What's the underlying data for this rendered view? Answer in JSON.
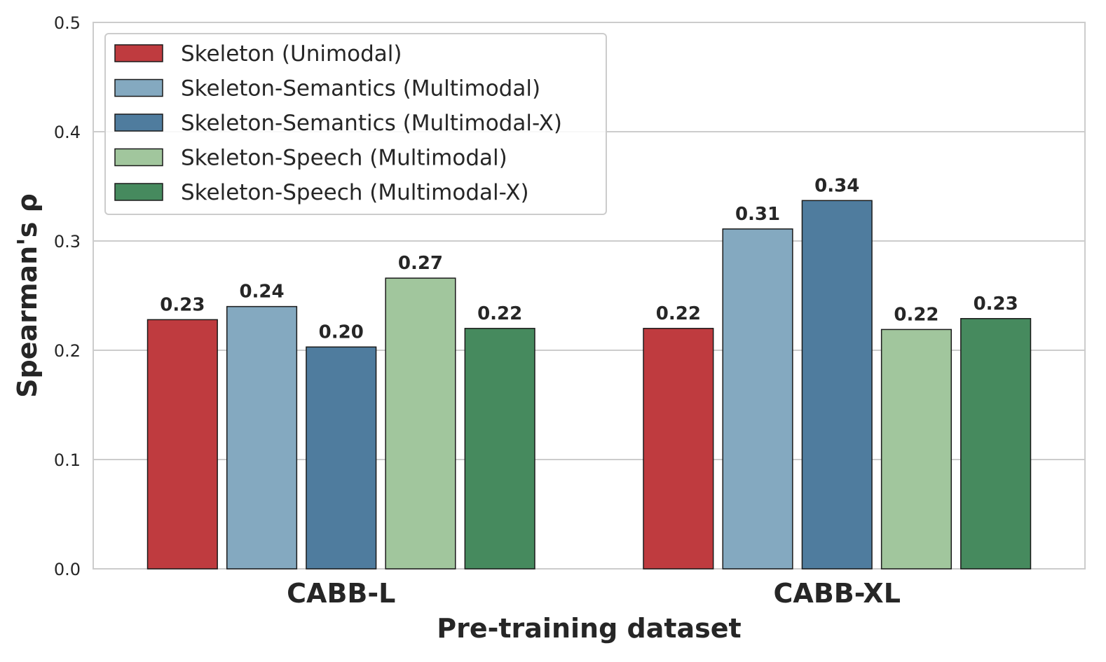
{
  "chart_data": {
    "type": "bar",
    "title": "",
    "xlabel": "Pre-training dataset",
    "ylabel": "Spearman's ρ",
    "categories": [
      "CABB-L",
      "CABB-XL"
    ],
    "ylim": [
      0,
      0.5
    ],
    "yticks": [
      "0.0",
      "0.1",
      "0.2",
      "0.3",
      "0.4",
      "0.5"
    ],
    "grid": true,
    "legend_position": "top-left",
    "series": [
      {
        "name": "Skeleton (Unimodal)",
        "color": "#BF3B3F",
        "values": [
          0.228,
          0.22
        ],
        "labels": [
          "0.23",
          "0.22"
        ]
      },
      {
        "name": "Skeleton-Semantics (Multimodal)",
        "color": "#84A9C0",
        "values": [
          0.24,
          0.311
        ],
        "labels": [
          "0.24",
          "0.31"
        ]
      },
      {
        "name": "Skeleton-Semantics (Multimodal-X)",
        "color": "#4F7C9E",
        "values": [
          0.203,
          0.337
        ],
        "labels": [
          "0.20",
          "0.34"
        ]
      },
      {
        "name": "Skeleton-Speech (Multimodal)",
        "color": "#A1C69D",
        "values": [
          0.266,
          0.219
        ],
        "labels": [
          "0.27",
          "0.22"
        ]
      },
      {
        "name": "Skeleton-Speech (Multimodal-X)",
        "color": "#468A5E",
        "values": [
          0.22,
          0.229
        ],
        "labels": [
          "0.22",
          "0.23"
        ]
      }
    ]
  }
}
